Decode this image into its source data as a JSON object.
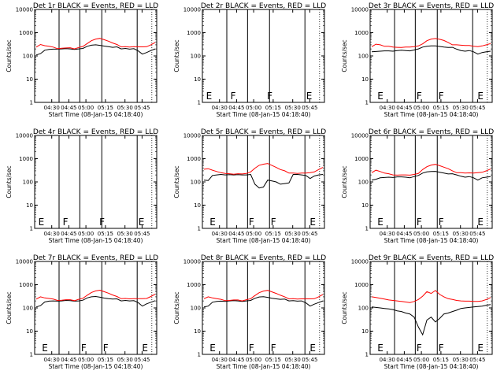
{
  "figure": {
    "x_tick_labels": [
      "04:30",
      "04:45",
      "05:00",
      "05:15",
      "05:30",
      "05:45"
    ],
    "xlabel": "Start Time (08-Jan-15 04:18:40)",
    "ylabel": "Counts/sec",
    "colors": {
      "events": "#000000",
      "lld": "#ff0000",
      "axes": "#000000"
    }
  },
  "chart_data": [
    {
      "type": "line",
      "title": "Det 1r BLACK = Events, RED = LLD",
      "y_ticks": [
        "1",
        "10",
        "100",
        "1000",
        "10000"
      ],
      "markers": [],
      "series": [
        {
          "name": "Events",
          "values": [
            110,
            125,
            175,
            190,
            195,
            195,
            200,
            205,
            200,
            190,
            200,
            210,
            260,
            290,
            300,
            285,
            265,
            250,
            235,
            245,
            200,
            210,
            195,
            205,
            165,
            120,
            140,
            170,
            200
          ]
        },
        {
          "name": "LLD",
          "values": [
            240,
            310,
            275,
            260,
            240,
            205,
            215,
            220,
            225,
            200,
            230,
            255,
            340,
            450,
            530,
            570,
            500,
            430,
            360,
            310,
            245,
            250,
            240,
            250,
            245,
            245,
            250,
            300,
            380
          ]
        }
      ]
    },
    {
      "type": "line",
      "title": "Det 2r BLACK = Events, RED = LLD",
      "y_ticks": [
        "1",
        "10",
        "100",
        "1000",
        "10000"
      ],
      "markers": [
        {
          "label": "E",
          "x": 0.03
        },
        {
          "label": "F",
          "x": 0.23
        },
        {
          "label": "F",
          "x": 0.53
        },
        {
          "label": "E",
          "x": 0.85
        }
      ],
      "series": []
    },
    {
      "type": "line",
      "title": "Det 3r BLACK = Events, RED = LLD",
      "y_ticks": [
        "1",
        "10",
        "100",
        "1000",
        "10000"
      ],
      "markers": [
        {
          "label": "E",
          "x": 0.06
        },
        {
          "label": "F",
          "x": 0.38
        },
        {
          "label": "F",
          "x": 0.56
        },
        {
          "label": "E",
          "x": 0.88
        }
      ],
      "series": [
        {
          "name": "Events",
          "values": [
            150,
            155,
            160,
            165,
            165,
            160,
            170,
            175,
            170,
            165,
            180,
            200,
            240,
            260,
            270,
            270,
            255,
            240,
            230,
            235,
            195,
            170,
            160,
            170,
            150,
            120,
            140,
            150,
            160
          ]
        },
        {
          "name": "LLD",
          "values": [
            250,
            320,
            300,
            260,
            260,
            240,
            235,
            230,
            240,
            240,
            250,
            270,
            330,
            450,
            530,
            560,
            520,
            460,
            380,
            300,
            300,
            290,
            280,
            280,
            260,
            250,
            270,
            300,
            340
          ]
        }
      ]
    },
    {
      "type": "line",
      "title": "Det 4r BLACK = Events, RED = LLD",
      "y_ticks": [
        "1",
        "10",
        "100",
        "1000",
        "10000"
      ],
      "markers": [
        {
          "label": "E",
          "x": 0.03
        },
        {
          "label": "F",
          "x": 0.23
        },
        {
          "label": "F",
          "x": 0.53
        },
        {
          "label": "E",
          "x": 0.85
        }
      ],
      "series": []
    },
    {
      "type": "line",
      "title": "Det 5r BLACK = Events, RED = LLD",
      "y_ticks": [
        "1",
        "10",
        "100",
        "1000",
        "10000"
      ],
      "markers": [
        {
          "label": "E",
          "x": 0.06
        },
        {
          "label": "F",
          "x": 0.38
        },
        {
          "label": "F",
          "x": 0.56
        },
        {
          "label": "E",
          "x": 0.88
        }
      ],
      "series": [
        {
          "name": "Events",
          "values": [
            120,
            115,
            190,
            200,
            210,
            200,
            205,
            200,
            205,
            200,
            200,
            210,
            80,
            55,
            60,
            120,
            110,
            100,
            80,
            85,
            90,
            210,
            210,
            200,
            190,
            140,
            180,
            200,
            210
          ]
        },
        {
          "name": "LLD",
          "values": [
            350,
            370,
            320,
            280,
            250,
            230,
            225,
            215,
            225,
            220,
            230,
            270,
            390,
            520,
            580,
            620,
            510,
            420,
            340,
            300,
            240,
            240,
            230,
            240,
            240,
            250,
            270,
            340,
            420
          ]
        }
      ]
    },
    {
      "type": "line",
      "title": "Det 6r BLACK = Events, RED = LLD",
      "y_ticks": [
        "1",
        "10",
        "100",
        "1000",
        "10000"
      ],
      "markers": [
        {
          "label": "E",
          "x": 0.06
        },
        {
          "label": "F",
          "x": 0.38
        },
        {
          "label": "F",
          "x": 0.56
        },
        {
          "label": "E",
          "x": 0.88
        }
      ],
      "series": [
        {
          "name": "Events",
          "values": [
            120,
            130,
            150,
            155,
            160,
            155,
            165,
            165,
            160,
            150,
            170,
            190,
            240,
            270,
            280,
            285,
            260,
            240,
            220,
            225,
            200,
            175,
            160,
            170,
            150,
            120,
            150,
            160,
            170
          ]
        },
        {
          "name": "LLD",
          "values": [
            250,
            320,
            280,
            240,
            225,
            200,
            195,
            200,
            200,
            195,
            210,
            230,
            340,
            450,
            530,
            570,
            500,
            430,
            370,
            300,
            250,
            250,
            240,
            245,
            240,
            250,
            260,
            300,
            360
          ]
        }
      ]
    },
    {
      "type": "line",
      "title": "Det 7r BLACK = Events, RED = LLD",
      "y_ticks": [
        "1",
        "10",
        "100",
        "1000",
        "10000"
      ],
      "markers": [
        {
          "label": "E",
          "x": 0.06
        },
        {
          "label": "F",
          "x": 0.38
        },
        {
          "label": "F",
          "x": 0.56
        },
        {
          "label": "E",
          "x": 0.88
        }
      ],
      "series": [
        {
          "name": "Events",
          "values": [
            110,
            125,
            180,
            195,
            200,
            195,
            200,
            210,
            205,
            195,
            200,
            215,
            270,
            300,
            310,
            290,
            265,
            250,
            240,
            245,
            200,
            210,
            200,
            205,
            170,
            120,
            150,
            175,
            205
          ]
        },
        {
          "name": "LLD",
          "values": [
            240,
            300,
            270,
            255,
            240,
            210,
            215,
            225,
            225,
            205,
            235,
            260,
            350,
            460,
            540,
            580,
            500,
            430,
            360,
            310,
            250,
            255,
            245,
            250,
            250,
            250,
            255,
            310,
            390
          ]
        }
      ]
    },
    {
      "type": "line",
      "title": "Det 8r BLACK = Events, RED = LLD",
      "y_ticks": [
        "1",
        "10",
        "100",
        "1000",
        "10000"
      ],
      "markers": [
        {
          "label": "E",
          "x": 0.06
        },
        {
          "label": "F",
          "x": 0.38
        },
        {
          "label": "F",
          "x": 0.56
        },
        {
          "label": "E",
          "x": 0.88
        }
      ],
      "series": [
        {
          "name": "Events",
          "values": [
            110,
            120,
            175,
            190,
            195,
            190,
            200,
            205,
            200,
            190,
            200,
            210,
            260,
            295,
            305,
            285,
            260,
            245,
            235,
            240,
            200,
            205,
            195,
            200,
            165,
            120,
            145,
            170,
            200
          ]
        },
        {
          "name": "LLD",
          "values": [
            250,
            300,
            270,
            250,
            235,
            205,
            210,
            220,
            220,
            200,
            225,
            250,
            340,
            450,
            530,
            570,
            490,
            420,
            350,
            300,
            245,
            250,
            240,
            245,
            245,
            245,
            250,
            300,
            380
          ]
        }
      ]
    },
    {
      "type": "line",
      "title": "Det 9r BLACK = Events, RED = LLD",
      "y_ticks": [
        "1",
        "10",
        "100",
        "1000",
        "10000"
      ],
      "markers": [
        {
          "label": "E",
          "x": 0.06
        },
        {
          "label": "F",
          "x": 0.38
        },
        {
          "label": "F",
          "x": 0.56
        },
        {
          "label": "E",
          "x": 0.88
        }
      ],
      "series": [
        {
          "name": "Events",
          "values": [
            110,
            105,
            100,
            95,
            90,
            85,
            75,
            70,
            60,
            55,
            40,
            15,
            7,
            30,
            40,
            25,
            35,
            55,
            60,
            70,
            80,
            95,
            100,
            105,
            110,
            115,
            120,
            130,
            140
          ]
        },
        {
          "name": "LLD",
          "values": [
            300,
            280,
            260,
            240,
            220,
            210,
            200,
            190,
            180,
            170,
            190,
            230,
            320,
            500,
            420,
            560,
            380,
            300,
            250,
            230,
            210,
            200,
            195,
            195,
            190,
            190,
            200,
            230,
            280
          ]
        }
      ]
    }
  ]
}
